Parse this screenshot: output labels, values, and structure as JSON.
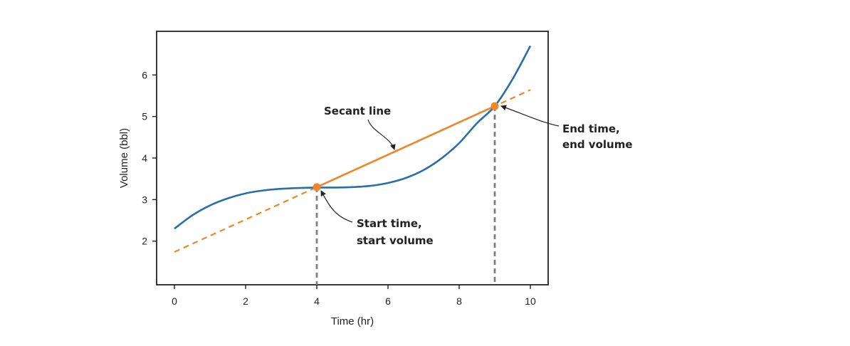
{
  "chart_data": {
    "type": "line",
    "xlabel": "Time (hr)",
    "ylabel": "Volume (bbl)",
    "xlim": [
      -0.5,
      10.5
    ],
    "ylim": [
      0.95,
      7.05
    ],
    "x_ticks": [
      0,
      2,
      4,
      6,
      8,
      10
    ],
    "y_ticks": [
      2,
      3,
      4,
      5,
      6
    ],
    "grid": false,
    "series": [
      {
        "type": "curve",
        "color": "#2A6EA8",
        "x": [
          0,
          0.5,
          1,
          1.5,
          2,
          2.5,
          3,
          3.5,
          4,
          4.5,
          5,
          5.5,
          6,
          6.5,
          7,
          7.5,
          8,
          8.5,
          9,
          9.5,
          10
        ],
        "y": [
          2.3,
          2.62,
          2.86,
          3.03,
          3.15,
          3.22,
          3.26,
          3.28,
          3.29,
          3.29,
          3.3,
          3.33,
          3.4,
          3.52,
          3.71,
          3.99,
          4.36,
          4.84,
          5.25,
          5.9,
          6.7
        ]
      },
      {
        "type": "secant-solid",
        "color": "#F0862A",
        "x": [
          4,
          9
        ],
        "y": [
          3.3,
          5.25
        ]
      },
      {
        "type": "secant-extension-dashed",
        "color": "#F0862A",
        "x": [
          0,
          10
        ],
        "y": [
          1.74,
          5.64
        ]
      }
    ],
    "points": [
      {
        "x": 4,
        "y": 3.3,
        "color": "#F0862A"
      },
      {
        "x": 9,
        "y": 5.25,
        "color": "#F0862A"
      }
    ],
    "drop_lines": [
      {
        "x": 4,
        "y": 3.3,
        "color": "#808080"
      },
      {
        "x": 9,
        "y": 5.25,
        "color": "#808080"
      }
    ],
    "annotations": {
      "secant": {
        "text": "Secant line"
      },
      "start": {
        "line1": "Start time,",
        "line2": "start volume"
      },
      "end": {
        "line1": "End time,",
        "line2": "end volume"
      }
    }
  }
}
